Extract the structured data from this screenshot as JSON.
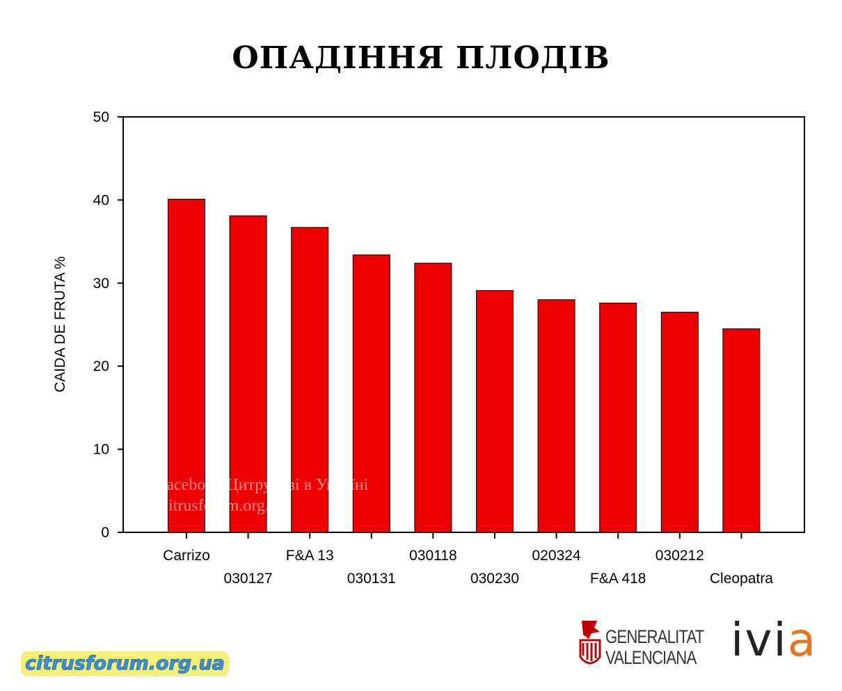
{
  "title": "ОПАДІННЯ ПЛОДІВ",
  "watermark": {
    "line1": "Facebook Цитрусові в Україні",
    "line2": "Citrusforum.org.ua"
  },
  "logos": {
    "gv_line1": "GENERALITAT",
    "gv_line2": "VALENCIANA",
    "ivia_main": "ivi",
    "ivia_accent": "a",
    "site": "citrusforum.org.ua"
  },
  "colors": {
    "bar": "#ef0000",
    "ivia_accent": "#e8731f",
    "site_text": "#3d8fd6",
    "site_bg": "#f3f078"
  },
  "chart_data": {
    "type": "bar",
    "title": "ОПАДІННЯ ПЛОДІВ",
    "xlabel": "",
    "ylabel": "CAIDA DE FRUTA %",
    "ylim": [
      0,
      50
    ],
    "yticks": [
      0,
      10,
      20,
      30,
      40,
      50
    ],
    "grid": false,
    "categories": [
      "Carrizo",
      "030127",
      "F&A 13",
      "030131",
      "030118",
      "030230",
      "020324",
      "F&A 418",
      "030212",
      "Cleopatra"
    ],
    "values": [
      40.1,
      38.1,
      36.7,
      33.4,
      32.4,
      29.1,
      28.0,
      27.6,
      26.5,
      24.5
    ]
  }
}
